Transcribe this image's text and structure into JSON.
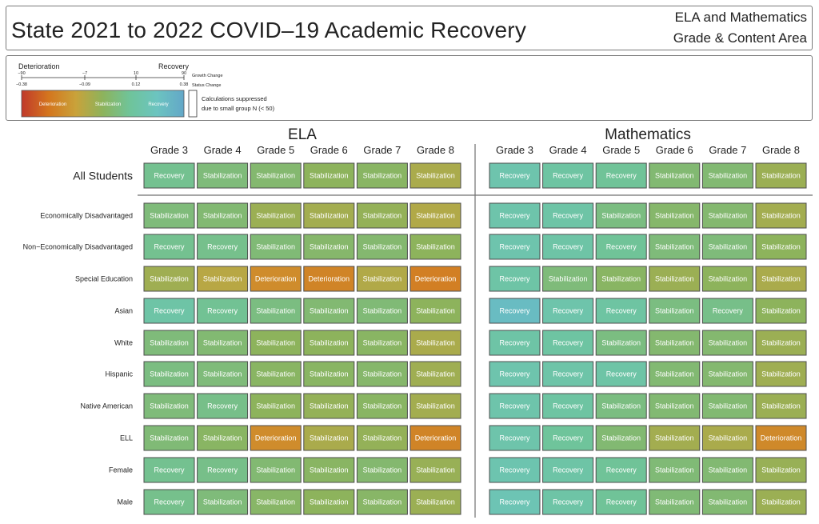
{
  "title": "State 2021 to 2022 COVID–19 Academic Recovery",
  "subtitle_line1": "ELA and Mathematics",
  "subtitle_line2": "Grade & Content Area",
  "legend": {
    "left_label": "Deterioration",
    "right_label": "Recovery",
    "growth_ticks": [
      "−90",
      "−7",
      "10",
      "90"
    ],
    "status_ticks": [
      "−0.38",
      "−0.09",
      "0.12",
      "0.38"
    ],
    "growth_axis_label": "Growth Change",
    "status_axis_label": "Status Change",
    "bar_labels": [
      "Deterioration",
      "Stabilization",
      "Recovery"
    ],
    "gradient_colors": [
      "#c0392b",
      "#d4761e",
      "#c9a23a",
      "#8db35c",
      "#6fc49a",
      "#6cc4c0",
      "#63a7c8"
    ],
    "suppressed_line1": "Calculations suppressed",
    "suppressed_line2": "due to small group N (< 50)"
  },
  "colors": {
    "tile_palette": [
      "#c0392b",
      "#d4761e",
      "#c9a23a",
      "#8db35c",
      "#6fc49a",
      "#6cc4c0",
      "#63a7c8"
    ],
    "tile_border": "#4d4d4d",
    "divider": "#707070"
  },
  "chart_data": {
    "type": "heatmap",
    "title": "State 2021 to 2022 COVID–19 Academic Recovery",
    "panels": [
      "ELA",
      "Mathematics"
    ],
    "grades": [
      "Grade 3",
      "Grade 4",
      "Grade 5",
      "Grade 6",
      "Grade 7",
      "Grade 8"
    ],
    "groups": [
      "All Students",
      "Economically Disadvantaged",
      "Non−Economically Disadvantaged",
      "Special Education",
      "Asian",
      "White",
      "Hispanic",
      "Native American",
      "ELL",
      "Female",
      "Male"
    ],
    "cells": {
      "ELA": [
        [
          {
            "label": "Recovery",
            "level": 0.64
          },
          {
            "label": "Stabilization",
            "level": 0.58
          },
          {
            "label": "Stabilization",
            "level": 0.55
          },
          {
            "label": "Stabilization",
            "level": 0.5
          },
          {
            "label": "Stabilization",
            "level": 0.52
          },
          {
            "label": "Stabilization",
            "level": 0.42
          }
        ],
        [
          {
            "label": "Stabilization",
            "level": 0.58
          },
          {
            "label": "Stabilization",
            "level": 0.56
          },
          {
            "label": "Stabilization",
            "level": 0.46
          },
          {
            "label": "Stabilization",
            "level": 0.44
          },
          {
            "label": "Stabilization",
            "level": 0.48
          },
          {
            "label": "Stabilization",
            "level": 0.4
          }
        ],
        [
          {
            "label": "Recovery",
            "level": 0.64
          },
          {
            "label": "Recovery",
            "level": 0.63
          },
          {
            "label": "Stabilization",
            "level": 0.57
          },
          {
            "label": "Stabilization",
            "level": 0.54
          },
          {
            "label": "Stabilization",
            "level": 0.55
          },
          {
            "label": "Stabilization",
            "level": 0.5
          }
        ],
        [
          {
            "label": "Stabilization",
            "level": 0.45
          },
          {
            "label": "Stabilization",
            "level": 0.38
          },
          {
            "label": "Deterioration",
            "level": 0.25
          },
          {
            "label": "Deterioration",
            "level": 0.22
          },
          {
            "label": "Stabilization",
            "level": 0.4
          },
          {
            "label": "Deterioration",
            "level": 0.2
          }
        ],
        [
          {
            "label": "Recovery",
            "level": 0.72
          },
          {
            "label": "Recovery",
            "level": 0.65
          },
          {
            "label": "Stabilization",
            "level": 0.6
          },
          {
            "label": "Stabilization",
            "level": 0.56
          },
          {
            "label": "Stabilization",
            "level": 0.57
          },
          {
            "label": "Stabilization",
            "level": 0.5
          }
        ],
        [
          {
            "label": "Stabilization",
            "level": 0.58
          },
          {
            "label": "Stabilization",
            "level": 0.56
          },
          {
            "label": "Stabilization",
            "level": 0.5
          },
          {
            "label": "Stabilization",
            "level": 0.5
          },
          {
            "label": "Stabilization",
            "level": 0.52
          },
          {
            "label": "Stabilization",
            "level": 0.42
          }
        ],
        [
          {
            "label": "Stabilization",
            "level": 0.6
          },
          {
            "label": "Stabilization",
            "level": 0.58
          },
          {
            "label": "Stabilization",
            "level": 0.52
          },
          {
            "label": "Stabilization",
            "level": 0.52
          },
          {
            "label": "Stabilization",
            "level": 0.54
          },
          {
            "label": "Stabilization",
            "level": 0.45
          }
        ],
        [
          {
            "label": "Stabilization",
            "level": 0.58
          },
          {
            "label": "Recovery",
            "level": 0.62
          },
          {
            "label": "Stabilization",
            "level": 0.5
          },
          {
            "label": "Stabilization",
            "level": 0.48
          },
          {
            "label": "Stabilization",
            "level": 0.52
          },
          {
            "label": "Stabilization",
            "level": 0.44
          }
        ],
        [
          {
            "label": "Stabilization",
            "level": 0.57
          },
          {
            "label": "Stabilization",
            "level": 0.52
          },
          {
            "label": "Deterioration",
            "level": 0.25
          },
          {
            "label": "Stabilization",
            "level": 0.42
          },
          {
            "label": "Stabilization",
            "level": 0.48
          },
          {
            "label": "Deterioration",
            "level": 0.22
          }
        ],
        [
          {
            "label": "Recovery",
            "level": 0.64
          },
          {
            "label": "Recovery",
            "level": 0.62
          },
          {
            "label": "Stabilization",
            "level": 0.56
          },
          {
            "label": "Stabilization",
            "level": 0.52
          },
          {
            "label": "Stabilization",
            "level": 0.55
          },
          {
            "label": "Stabilization",
            "level": 0.47
          }
        ],
        [
          {
            "label": "Recovery",
            "level": 0.63
          },
          {
            "label": "Stabilization",
            "level": 0.58
          },
          {
            "label": "Stabilization",
            "level": 0.53
          },
          {
            "label": "Stabilization",
            "level": 0.5
          },
          {
            "label": "Stabilization",
            "level": 0.53
          },
          {
            "label": "Stabilization",
            "level": 0.46
          }
        ]
      ],
      "Mathematics": [
        [
          {
            "label": "Recovery",
            "level": 0.75
          },
          {
            "label": "Recovery",
            "level": 0.7
          },
          {
            "label": "Recovery",
            "level": 0.66
          },
          {
            "label": "Stabilization",
            "level": 0.56
          },
          {
            "label": "Stabilization",
            "level": 0.56
          },
          {
            "label": "Stabilization",
            "level": 0.46
          }
        ],
        [
          {
            "label": "Recovery",
            "level": 0.74
          },
          {
            "label": "Recovery",
            "level": 0.72
          },
          {
            "label": "Stabilization",
            "level": 0.6
          },
          {
            "label": "Stabilization",
            "level": 0.54
          },
          {
            "label": "Stabilization",
            "level": 0.55
          },
          {
            "label": "Stabilization",
            "level": 0.44
          }
        ],
        [
          {
            "label": "Recovery",
            "level": 0.75
          },
          {
            "label": "Recovery",
            "level": 0.72
          },
          {
            "label": "Recovery",
            "level": 0.66
          },
          {
            "label": "Stabilization",
            "level": 0.58
          },
          {
            "label": "Stabilization",
            "level": 0.58
          },
          {
            "label": "Stabilization",
            "level": 0.5
          }
        ],
        [
          {
            "label": "Recovery",
            "level": 0.72
          },
          {
            "label": "Stabilization",
            "level": 0.58
          },
          {
            "label": "Stabilization",
            "level": 0.52
          },
          {
            "label": "Stabilization",
            "level": 0.46
          },
          {
            "label": "Stabilization",
            "level": 0.5
          },
          {
            "label": "Stabilization",
            "level": 0.42
          }
        ],
        [
          {
            "label": "Recovery",
            "level": 0.88
          },
          {
            "label": "Recovery",
            "level": 0.74
          },
          {
            "label": "Recovery",
            "level": 0.7
          },
          {
            "label": "Stabilization",
            "level": 0.6
          },
          {
            "label": "Recovery",
            "level": 0.62
          },
          {
            "label": "Stabilization",
            "level": 0.5
          }
        ],
        [
          {
            "label": "Recovery",
            "level": 0.72
          },
          {
            "label": "Recovery",
            "level": 0.7
          },
          {
            "label": "Stabilization",
            "level": 0.6
          },
          {
            "label": "Stabilization",
            "level": 0.55
          },
          {
            "label": "Stabilization",
            "level": 0.55
          },
          {
            "label": "Stabilization",
            "level": 0.46
          }
        ],
        [
          {
            "label": "Recovery",
            "level": 0.75
          },
          {
            "label": "Recovery",
            "level": 0.73
          },
          {
            "label": "Recovery",
            "level": 0.72
          },
          {
            "label": "Stabilization",
            "level": 0.56
          },
          {
            "label": "Stabilization",
            "level": 0.55
          },
          {
            "label": "Stabilization",
            "level": 0.45
          }
        ],
        [
          {
            "label": "Recovery",
            "level": 0.74
          },
          {
            "label": "Recovery",
            "level": 0.7
          },
          {
            "label": "Stabilization",
            "level": 0.6
          },
          {
            "label": "Stabilization",
            "level": 0.56
          },
          {
            "label": "Stabilization",
            "level": 0.56
          },
          {
            "label": "Stabilization",
            "level": 0.46
          }
        ],
        [
          {
            "label": "Recovery",
            "level": 0.74
          },
          {
            "label": "Recovery",
            "level": 0.67
          },
          {
            "label": "Stabilization",
            "level": 0.56
          },
          {
            "label": "Stabilization",
            "level": 0.44
          },
          {
            "label": "Stabilization",
            "level": 0.42
          },
          {
            "label": "Deterioration",
            "level": 0.24
          }
        ],
        [
          {
            "label": "Recovery",
            "level": 0.76
          },
          {
            "label": "Recovery",
            "level": 0.72
          },
          {
            "label": "Recovery",
            "level": 0.66
          },
          {
            "label": "Stabilization",
            "level": 0.57
          },
          {
            "label": "Stabilization",
            "level": 0.56
          },
          {
            "label": "Stabilization",
            "level": 0.47
          }
        ],
        [
          {
            "label": "Recovery",
            "level": 0.78
          },
          {
            "label": "Recovery",
            "level": 0.72
          },
          {
            "label": "Recovery",
            "level": 0.66
          },
          {
            "label": "Stabilization",
            "level": 0.57
          },
          {
            "label": "Stabilization",
            "level": 0.56
          },
          {
            "label": "Stabilization",
            "level": 0.46
          }
        ]
      ]
    }
  }
}
